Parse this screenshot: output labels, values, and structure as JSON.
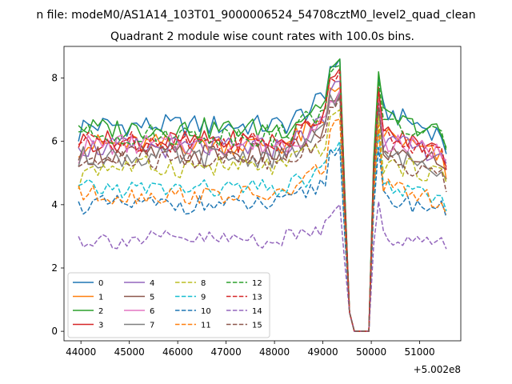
{
  "figure": {
    "suptitle": "n file: modeM0/AS1A14_103T01_9000006524_54708cztM0_level2_quad_clean",
    "title": "Quadrant 2 module wise count rates with 100.0s bins.",
    "x_offset_label": "+5.002e8"
  },
  "chart_data": {
    "type": "line",
    "title": "Quadrant 2 module wise count rates with 100.0s bins.",
    "xlabel": "",
    "ylabel": "",
    "x_offset": 500200000,
    "x_range": [
      43950,
      51550
    ],
    "xlim": [
      43650,
      51850
    ],
    "ylim": [
      -0.3,
      9.0
    ],
    "x_ticks": [
      44000,
      45000,
      46000,
      47000,
      48000,
      49000,
      50000,
      51000
    ],
    "x_tick_labels": [
      "44000",
      "45000",
      "46000",
      "47000",
      "48000",
      "49000",
      "50000",
      "51000"
    ],
    "y_ticks": [
      0,
      2,
      4,
      6,
      8
    ],
    "y_tick_labels": [
      "0",
      "2",
      "4",
      "6",
      "8"
    ],
    "grid": false,
    "legend_position": "lower-left",
    "legend_columns": 4,
    "colors": [
      "#1f77b4",
      "#ff7f0e",
      "#2ca02c",
      "#d62728",
      "#9467bd",
      "#8c564b",
      "#e377c2",
      "#7f7f7f",
      "#bcbd22",
      "#17becf",
      "#1f77b4",
      "#ff7f0e",
      "#2ca02c",
      "#d62728",
      "#9467bd",
      "#8c564b"
    ],
    "series": [
      {
        "name": "0",
        "style": "solid",
        "baseline": 6.5,
        "start": 6.0,
        "peak": 8.6,
        "post_peak": 8.0,
        "post_level": 7.0,
        "end": 5.6
      },
      {
        "name": "1",
        "style": "solid",
        "baseline": 5.9,
        "start": 5.5,
        "peak": 7.7,
        "post_peak": 7.7,
        "post_level": 6.3,
        "end": 4.8
      },
      {
        "name": "2",
        "style": "solid",
        "baseline": 6.4,
        "start": 6.5,
        "peak": 8.6,
        "post_peak": 8.2,
        "post_level": 6.8,
        "end": 5.8
      },
      {
        "name": "3",
        "style": "solid",
        "baseline": 6.0,
        "start": 5.8,
        "peak": 8.3,
        "post_peak": 7.7,
        "post_level": 6.3,
        "end": 5.2
      },
      {
        "name": "4",
        "style": "solid",
        "baseline": 5.8,
        "start": 5.8,
        "peak": 7.9,
        "post_peak": 7.3,
        "post_level": 6.0,
        "end": 5.3
      },
      {
        "name": "5",
        "style": "solid",
        "baseline": 5.6,
        "start": 5.4,
        "peak": 7.6,
        "post_peak": 7.1,
        "post_level": 5.7,
        "end": 5.1
      },
      {
        "name": "6",
        "style": "solid",
        "baseline": 5.9,
        "start": 5.3,
        "peak": 7.6,
        "post_peak": 7.3,
        "post_level": 6.0,
        "end": 5.4
      },
      {
        "name": "7",
        "style": "solid",
        "baseline": 5.5,
        "start": 5.2,
        "peak": 7.5,
        "post_peak": 7.0,
        "post_level": 5.6,
        "end": 4.8
      },
      {
        "name": "8",
        "style": "dashed",
        "baseline": 5.2,
        "start": 4.5,
        "peak": 7.0,
        "post_peak": 6.8,
        "post_level": 5.3,
        "end": 4.7
      },
      {
        "name": "9",
        "style": "dashed",
        "baseline": 4.5,
        "start": 4.6,
        "peak": 6.0,
        "post_peak": 6.3,
        "post_level": 4.6,
        "end": 3.8
      },
      {
        "name": "10",
        "style": "dashed",
        "baseline": 4.0,
        "start": 4.1,
        "peak": 5.8,
        "post_peak": 5.8,
        "post_level": 4.2,
        "end": 3.6
      },
      {
        "name": "11",
        "style": "dashed",
        "baseline": 4.3,
        "start": 4.6,
        "peak": 6.7,
        "post_peak": 6.5,
        "post_level": 4.6,
        "end": 3.7
      },
      {
        "name": "12",
        "style": "dashed",
        "baseline": 6.2,
        "start": 6.3,
        "peak": 8.4,
        "post_peak": 7.9,
        "post_level": 6.6,
        "end": 5.7
      },
      {
        "name": "13",
        "style": "dashed",
        "baseline": 6.0,
        "start": 5.9,
        "peak": 8.2,
        "post_peak": 7.6,
        "post_level": 6.2,
        "end": 5.1
      },
      {
        "name": "14",
        "style": "dashed",
        "baseline": 2.9,
        "start": 3.0,
        "peak": 4.0,
        "post_peak": 4.1,
        "post_level": 3.0,
        "end": 2.6
      },
      {
        "name": "15",
        "style": "dashed",
        "baseline": 5.4,
        "start": 5.2,
        "peak": 7.4,
        "post_peak": 7.2,
        "post_level": 5.5,
        "end": 4.4
      }
    ]
  }
}
